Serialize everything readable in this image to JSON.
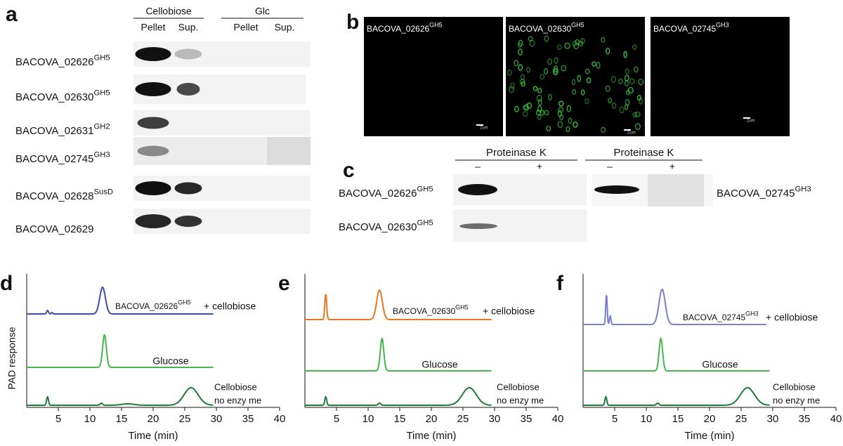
{
  "panel_a": {
    "label": "a",
    "groups": [
      {
        "name": "Cellobiose",
        "columns": [
          "Pellet",
          "Sup."
        ]
      },
      {
        "name": "Glc",
        "columns": [
          "Pellet",
          "Sup."
        ]
      }
    ],
    "rows": [
      {
        "name": "BACOVA_02626",
        "sup": "GH5"
      },
      {
        "name": "BACOVA_02630",
        "sup": "GH5"
      },
      {
        "name": "BACOVA_02631",
        "sup": "GH2"
      },
      {
        "name": "BACOVA_02745",
        "sup": "GH3"
      },
      {
        "name": "BACOVA_02628",
        "sup": "SusD"
      },
      {
        "name": "BACOVA_02629"
      }
    ]
  },
  "panel_b": {
    "label": "b",
    "images": [
      {
        "name": "BACOVA_02626",
        "sup": "GH5",
        "scale": "2um"
      },
      {
        "name": "BACOVA_02630",
        "sup": "GH5",
        "scale": "2um"
      },
      {
        "name": "BACOVA_02745",
        "sup": "GH3",
        "scale": "2um"
      }
    ]
  },
  "panel_c": {
    "label": "c",
    "groups": [
      {
        "name": "Proteinase K",
        "columns": [
          "–",
          "+"
        ]
      },
      {
        "name": "Proteinase K",
        "columns": [
          "–",
          "+"
        ]
      }
    ],
    "left_rows": [
      {
        "name": "BACOVA_02626",
        "sup": "GH5"
      },
      {
        "name": "BACOVA_02630",
        "sup": "GH5"
      }
    ],
    "right_row": {
      "name": "BACOVA_02745",
      "sup": "GH3"
    }
  },
  "chromatograms": {
    "y_label": "PAD response",
    "panels": [
      {
        "label": "d",
        "x_label": "Time (min)",
        "xlim": [
          0,
          40
        ],
        "xticks": [
          5,
          10,
          15,
          20,
          25,
          30,
          35,
          40
        ],
        "traces": [
          {
            "color": "#3b4ea6",
            "end": 29.5,
            "peaks": [
              {
                "time": 3.3,
                "height": 5,
                "width": 0.15
              },
              {
                "time": 4,
                "height": 2,
                "width": 0.12
              },
              {
                "time": 12,
                "height": 38,
                "width": 0.45
              }
            ],
            "annotation": {
              "name": "BACOVA_02626",
              "sup": "GH5",
              "suffix": "+ cellobiose"
            }
          },
          {
            "color": "#45b649",
            "end": 29.5,
            "peaks": [
              {
                "time": 12.3,
                "height": 46,
                "width": 0.3
              }
            ],
            "annotation": {
              "text": "Glucose"
            }
          },
          {
            "color": "#1f7a3c",
            "end": 29.5,
            "peaks": [
              {
                "time": 3.3,
                "height": 12,
                "width": 0.15
              },
              {
                "time": 11.8,
                "height": 3,
                "width": 0.2
              },
              {
                "time": 16,
                "height": 2,
                "width": 1
              },
              {
                "time": 26,
                "height": 25,
                "width": 1.1
              }
            ],
            "annotation": {
              "lines": [
                "Cellobiose",
                "no enzy me"
              ]
            }
          }
        ]
      },
      {
        "label": "e",
        "x_label": "Time (min)",
        "xlim": [
          0,
          40
        ],
        "xticks": [
          5,
          10,
          15,
          20,
          25,
          30,
          35,
          40
        ],
        "traces": [
          {
            "color": "#e87722",
            "end": 29.5,
            "peaks": [
              {
                "time": 3.3,
                "height": 36,
                "width": 0.15
              },
              {
                "time": 11.8,
                "height": 42,
                "width": 0.45
              }
            ],
            "annotation": {
              "name": "BACOVA_02630",
              "sup": "GH5",
              "suffix": "+ cellobiose"
            }
          },
          {
            "color": "#45b649",
            "end": 29.5,
            "peaks": [
              {
                "time": 12.2,
                "height": 46,
                "width": 0.28
              }
            ],
            "annotation": {
              "text": "Glucose"
            }
          },
          {
            "color": "#1f7a3c",
            "end": 29.5,
            "peaks": [
              {
                "time": 3.3,
                "height": 12,
                "width": 0.15
              },
              {
                "time": 11.8,
                "height": 3,
                "width": 0.2
              },
              {
                "time": 26,
                "height": 25,
                "width": 1.1
              }
            ],
            "annotation": {
              "lines": [
                "Cellobiose",
                "no enzy me"
              ]
            }
          }
        ]
      },
      {
        "label": "f",
        "x_label": "Time (min)",
        "xlim": [
          0,
          40
        ],
        "xticks": [
          5,
          10,
          15,
          20,
          25,
          30,
          35,
          40
        ],
        "traces": [
          {
            "color": "#7b7fcc",
            "end": 29,
            "peaks": [
              {
                "time": 3.7,
                "height": 42,
                "width": 0.12
              },
              {
                "time": 4.3,
                "height": 12,
                "width": 0.12
              },
              {
                "time": 12.5,
                "height": 50,
                "width": 0.5
              }
            ],
            "annotation": {
              "name": "BACOVA_02745",
              "sup": "GH3",
              "suffix": "+  cellobiose"
            }
          },
          {
            "color": "#45b649",
            "end": 29.5,
            "peaks": [
              {
                "time": 12.3,
                "height": 46,
                "width": 0.28
              }
            ],
            "annotation": {
              "text": "Glucose"
            }
          },
          {
            "color": "#1f7a3c",
            "end": 29.5,
            "peaks": [
              {
                "time": 3.6,
                "height": 12,
                "width": 0.15
              },
              {
                "time": 11.8,
                "height": 3,
                "width": 0.2
              },
              {
                "time": 26,
                "height": 25,
                "width": 1.1
              }
            ],
            "annotation": {
              "lines": [
                "Cellobiose",
                "no enzy me"
              ]
            }
          }
        ]
      }
    ]
  }
}
